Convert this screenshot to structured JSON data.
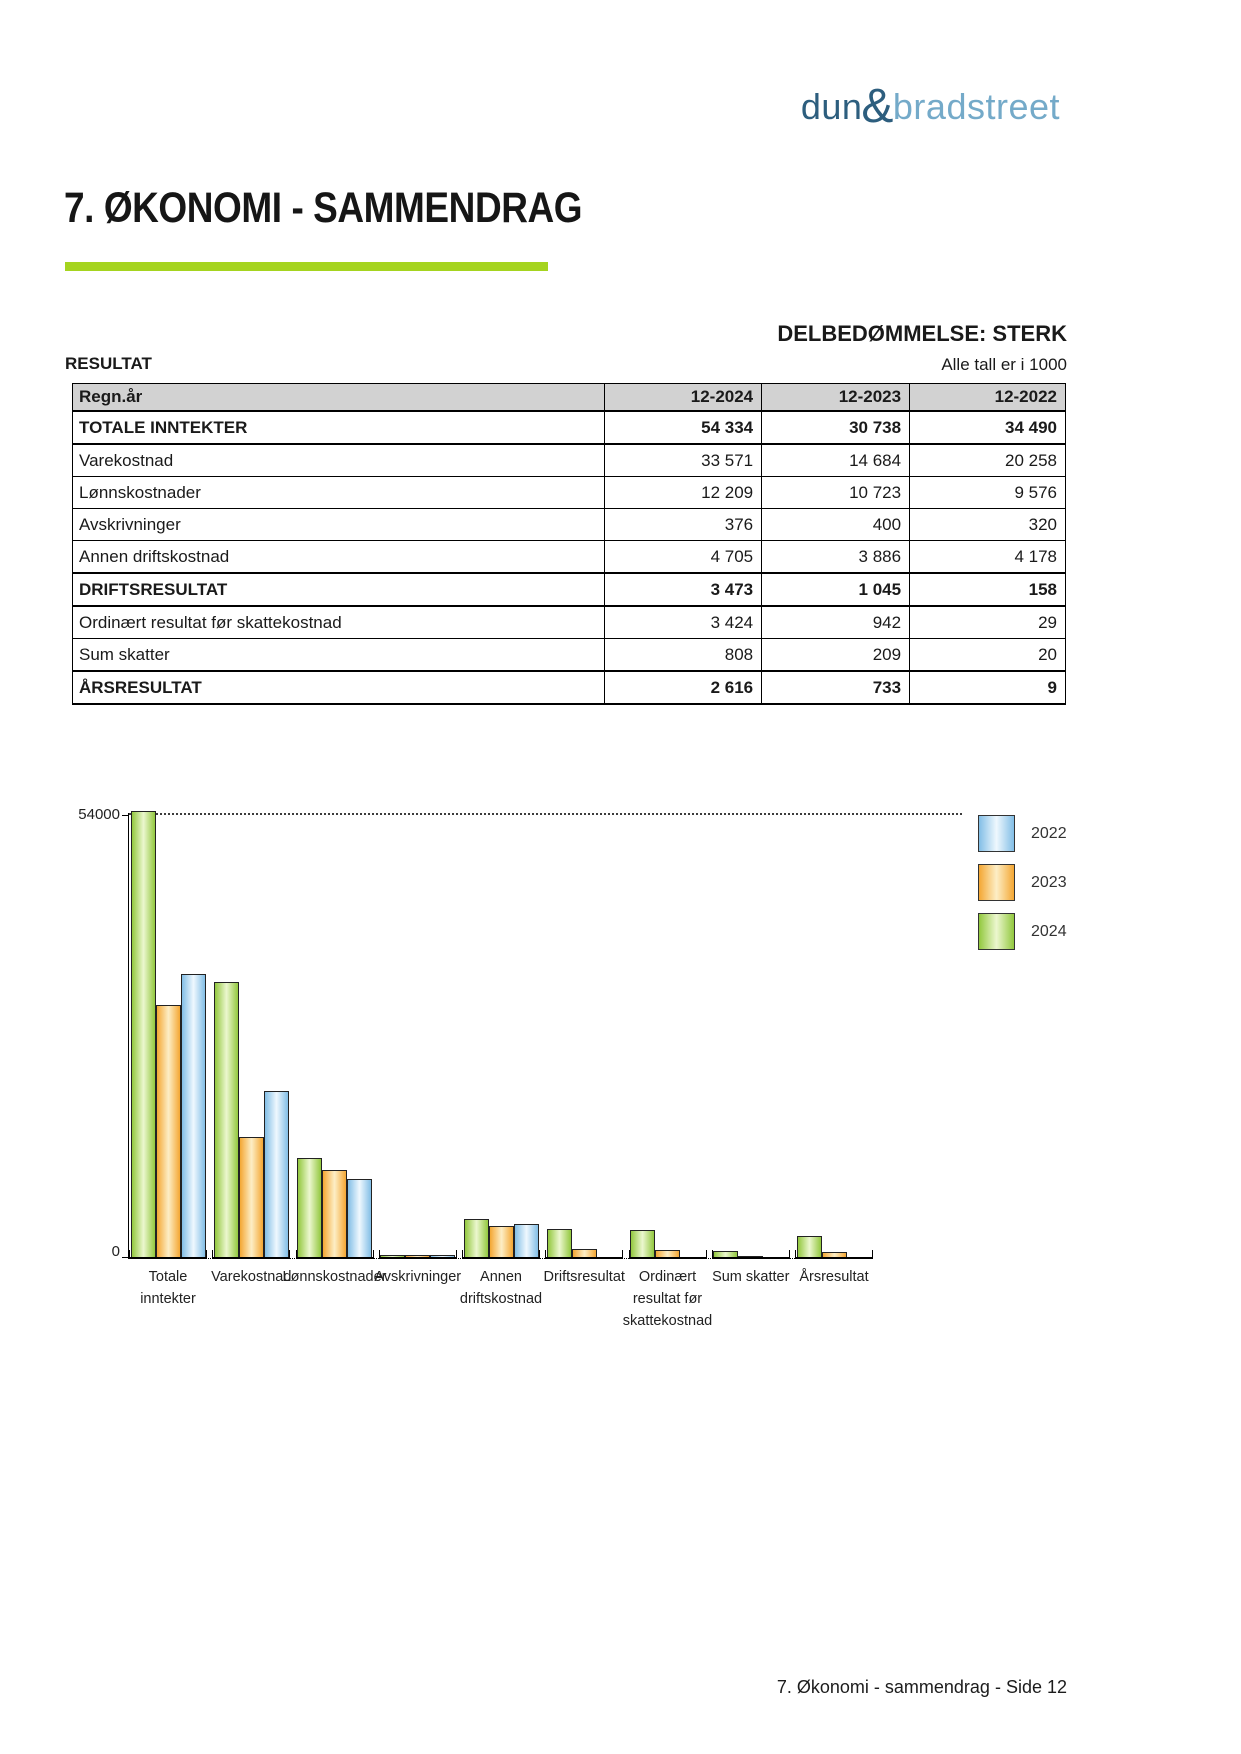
{
  "logo": {
    "dun": "dun",
    "amp": "&",
    "bradstreet": "bradstreet"
  },
  "title": "7. ØKONOMI - SAMMENDRAG",
  "assessment": "DELBEDØMMELSE: STERK",
  "section_label": "RESULTAT",
  "units_note": "Alle tall er i 1000",
  "table": {
    "header": [
      "Regn.år",
      "12-2024",
      "12-2023",
      "12-2022"
    ],
    "rows": [
      {
        "label": "TOTALE INNTEKTER",
        "bold": true,
        "values": [
          "54 334",
          "30 738",
          "34 490"
        ]
      },
      {
        "label": "Varekostnad",
        "bold": false,
        "values": [
          "33 571",
          "14 684",
          "20 258"
        ]
      },
      {
        "label": "Lønnskostnader",
        "bold": false,
        "values": [
          "12 209",
          "10 723",
          "9 576"
        ]
      },
      {
        "label": "Avskrivninger",
        "bold": false,
        "values": [
          "376",
          "400",
          "320"
        ]
      },
      {
        "label": "Annen driftskostnad",
        "bold": false,
        "values": [
          "4 705",
          "3 886",
          "4 178"
        ]
      },
      {
        "label": "DRIFTSRESULTAT",
        "bold": true,
        "values": [
          "3 473",
          "1 045",
          "158"
        ]
      },
      {
        "label": "Ordinært resultat før skattekostnad",
        "bold": false,
        "values": [
          "3 424",
          "942",
          "29"
        ]
      },
      {
        "label": "Sum skatter",
        "bold": false,
        "values": [
          "808",
          "209",
          "20"
        ]
      },
      {
        "label": "ÅRSRESULTAT",
        "bold": true,
        "values": [
          "2 616",
          "733",
          "9"
        ]
      }
    ]
  },
  "chart_data": {
    "type": "bar",
    "categories": [
      "Totale\ninntekter",
      "Varekostnad",
      "Lønnskostnader",
      "Avskrivninger",
      "Annen\ndriftskostnad",
      "Driftsresultat",
      "Ordinært\nresultat før\nskattekostnad",
      "Sum skatter",
      "Årsresultat"
    ],
    "series": [
      {
        "name": "2024",
        "edge_color": "#92c83e",
        "center_color": "#ecf7cf",
        "values": [
          54334,
          33571,
          12209,
          376,
          4705,
          3473,
          3424,
          808,
          2616
        ]
      },
      {
        "name": "2023",
        "edge_color": "#f4a733",
        "center_color": "#fdeec6",
        "values": [
          30738,
          14684,
          10723,
          400,
          3886,
          1045,
          942,
          209,
          733
        ]
      },
      {
        "name": "2022",
        "edge_color": "#82bee6",
        "center_color": "#eff8fe",
        "values": [
          34490,
          20258,
          9576,
          320,
          4178,
          158,
          29,
          20,
          9
        ]
      }
    ],
    "bar_order": [
      "2024",
      "2023",
      "2022"
    ],
    "legend_order": [
      "2022",
      "2023",
      "2024"
    ],
    "ylim": [
      0,
      54000
    ],
    "ytick_labels": [
      "54000",
      "0"
    ],
    "grid": "single dotted reference line at y max (54000), dotted baseline at 0",
    "legend_position": "top-right"
  },
  "footer": "7. Økonomi - sammendrag - Side 12",
  "colors": {
    "accent_green": "#a5d41f",
    "table_header_bg": "#d2d2d2",
    "logo_dark_blue": "#2d5e7e",
    "logo_light_blue": "#74aac9"
  }
}
